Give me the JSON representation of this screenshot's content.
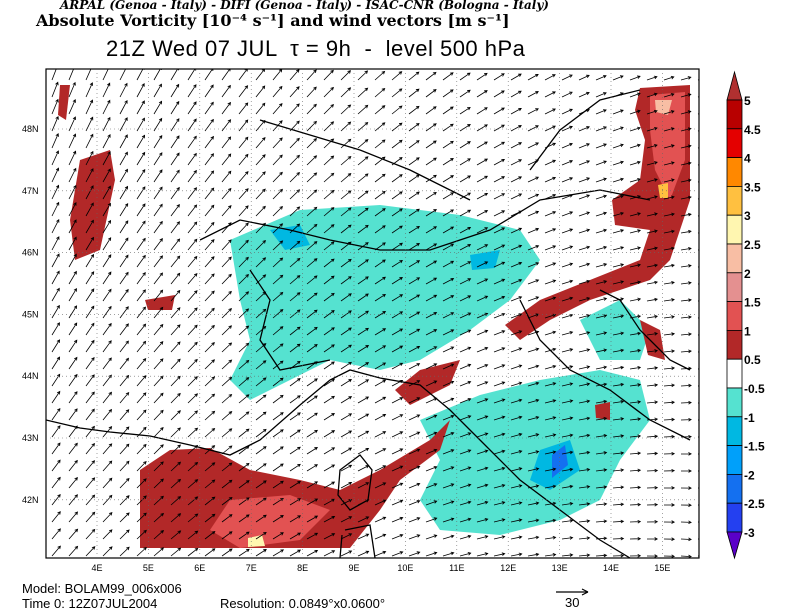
{
  "header": {
    "credits": "ARPAL (Genoa - Italy)  -  DIFI (Genoa - Italy)  -  ISAC-CNR (Bologna - Italy)",
    "field_title": "Absolute Vorticity [10⁻⁴ s⁻¹] and wind vectors [m s⁻¹]",
    "time_title": "21Z Wed 07 JUL  τ = 9h  -  level 500 hPa"
  },
  "axes": {
    "lat_labels": [
      "48N",
      "47N",
      "46N",
      "45N",
      "44N",
      "43N",
      "42N"
    ],
    "lon_labels": [
      "4E",
      "5E",
      "6E",
      "7E",
      "8E",
      "9E",
      "10E",
      "11E",
      "12E",
      "13E",
      "14E",
      "15E"
    ]
  },
  "colorbar": {
    "labels": [
      "5",
      "4.5",
      "4",
      "3.5",
      "3",
      "2.5",
      "2",
      "1.5",
      "1",
      "0.5",
      "-0.5",
      "-1",
      "-1.5",
      "-2",
      "-2.5",
      "-3"
    ],
    "colors": [
      "#b80000",
      "#e40000",
      "#ff8800",
      "#ffc040",
      "#fff6b0",
      "#f8bea4",
      "#e49090",
      "#e25252",
      "#b22828",
      "#ffffff",
      "#55e2d0",
      "#00b8e2",
      "#00a0fa",
      "#1470f0",
      "#2440f0"
    ],
    "top_color": "#b03030",
    "bottom_color": "#5a00c8"
  },
  "footer": {
    "model": "Model: BOLAM99_006x006",
    "time0": "Time 0: 12Z07JUL2004",
    "resolution": "Resolution: 0.0849°x0.0600°",
    "ref_vector": "30"
  }
}
